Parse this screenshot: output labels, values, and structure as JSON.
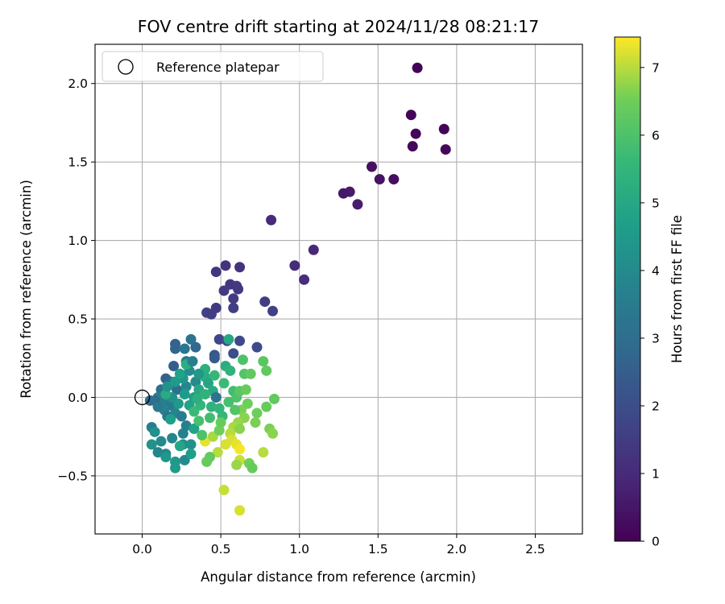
{
  "chart_data": {
    "type": "scatter",
    "title": "FOV centre drift starting at 2024/11/28 08:21:17",
    "xlabel": "Angular distance from reference (arcmin)",
    "ylabel": "Rotation from reference (arcmin)",
    "xlim": [
      -0.3,
      2.8
    ],
    "ylim": [
      -0.87,
      2.25
    ],
    "xticks": [
      0.0,
      0.5,
      1.0,
      1.5,
      2.0,
      2.5
    ],
    "xtick_labels": [
      "0.0",
      "0.5",
      "1.0",
      "1.5",
      "2.0",
      "2.5"
    ],
    "yticks": [
      -0.5,
      0.0,
      0.5,
      1.0,
      1.5,
      2.0
    ],
    "ytick_labels": [
      "−0.5",
      "0.0",
      "0.5",
      "1.0",
      "1.5",
      "2.0"
    ],
    "grid": true,
    "legend": {
      "position": "upper-left",
      "entries": [
        "Reference platepar"
      ]
    },
    "reference_point": {
      "x": 0.0,
      "y": 0.0
    },
    "colorbar": {
      "label": "Hours from first FF file",
      "colormap": "viridis",
      "range": [
        0,
        7.45
      ],
      "ticks": [
        0,
        1,
        2,
        3,
        4,
        5,
        6,
        7
      ],
      "tick_labels": [
        "0",
        "1",
        "2",
        "3",
        "4",
        "5",
        "6",
        "7"
      ]
    },
    "points": [
      {
        "x": 1.75,
        "y": 2.1,
        "h": 0.05
      },
      {
        "x": 1.71,
        "y": 1.8,
        "h": 0.1
      },
      {
        "x": 1.74,
        "y": 1.68,
        "h": 0.12
      },
      {
        "x": 1.72,
        "y": 1.6,
        "h": 0.15
      },
      {
        "x": 1.92,
        "y": 1.71,
        "h": 0.08
      },
      {
        "x": 1.93,
        "y": 1.58,
        "h": 0.18
      },
      {
        "x": 1.46,
        "y": 1.47,
        "h": 0.35
      },
      {
        "x": 1.51,
        "y": 1.39,
        "h": 0.4
      },
      {
        "x": 1.6,
        "y": 1.39,
        "h": 0.3
      },
      {
        "x": 1.28,
        "y": 1.3,
        "h": 0.55
      },
      {
        "x": 1.32,
        "y": 1.31,
        "h": 0.6
      },
      {
        "x": 1.37,
        "y": 1.23,
        "h": 0.7
      },
      {
        "x": 0.82,
        "y": 1.13,
        "h": 1.0
      },
      {
        "x": 1.09,
        "y": 0.94,
        "h": 0.95
      },
      {
        "x": 0.97,
        "y": 0.84,
        "h": 1.05
      },
      {
        "x": 1.03,
        "y": 0.75,
        "h": 1.1
      },
      {
        "x": 0.53,
        "y": 0.84,
        "h": 1.2
      },
      {
        "x": 0.62,
        "y": 0.83,
        "h": 1.25
      },
      {
        "x": 0.47,
        "y": 0.8,
        "h": 1.3
      },
      {
        "x": 0.56,
        "y": 0.72,
        "h": 1.35
      },
      {
        "x": 0.6,
        "y": 0.71,
        "h": 1.4
      },
      {
        "x": 0.61,
        "y": 0.69,
        "h": 1.42
      },
      {
        "x": 0.52,
        "y": 0.68,
        "h": 1.45
      },
      {
        "x": 0.58,
        "y": 0.63,
        "h": 1.5
      },
      {
        "x": 0.58,
        "y": 0.57,
        "h": 1.55
      },
      {
        "x": 0.47,
        "y": 0.57,
        "h": 1.48
      },
      {
        "x": 0.41,
        "y": 0.54,
        "h": 1.6
      },
      {
        "x": 0.44,
        "y": 0.53,
        "h": 1.58
      },
      {
        "x": 0.78,
        "y": 0.61,
        "h": 1.55
      },
      {
        "x": 0.83,
        "y": 0.55,
        "h": 1.65
      },
      {
        "x": 0.49,
        "y": 0.37,
        "h": 1.8
      },
      {
        "x": 0.54,
        "y": 0.36,
        "h": 1.85
      },
      {
        "x": 0.62,
        "y": 0.36,
        "h": 1.9
      },
      {
        "x": 0.73,
        "y": 0.32,
        "h": 1.95
      },
      {
        "x": 0.58,
        "y": 0.28,
        "h": 2.0
      },
      {
        "x": 0.46,
        "y": 0.27,
        "h": 2.3
      },
      {
        "x": 0.46,
        "y": 0.25,
        "h": 2.4
      },
      {
        "x": 0.21,
        "y": 0.34,
        "h": 2.6
      },
      {
        "x": 0.21,
        "y": 0.31,
        "h": 2.7
      },
      {
        "x": 0.34,
        "y": 0.32,
        "h": 2.8
      },
      {
        "x": 0.31,
        "y": 0.37,
        "h": 3.2
      },
      {
        "x": 0.27,
        "y": 0.31,
        "h": 3.3
      },
      {
        "x": 0.28,
        "y": 0.23,
        "h": 3.4
      },
      {
        "x": 0.2,
        "y": 0.2,
        "h": 2.5
      },
      {
        "x": 0.15,
        "y": 0.12,
        "h": 2.6
      },
      {
        "x": 0.18,
        "y": 0.1,
        "h": 2.8
      },
      {
        "x": 0.22,
        "y": 0.05,
        "h": 3.0
      },
      {
        "x": 0.12,
        "y": 0.05,
        "h": 3.1
      },
      {
        "x": 0.1,
        "y": 0.0,
        "h": 3.5
      },
      {
        "x": 0.13,
        "y": -0.02,
        "h": 3.6
      },
      {
        "x": 0.08,
        "y": -0.02,
        "h": 2.9
      },
      {
        "x": 0.05,
        "y": -0.02,
        "h": 3.0
      },
      {
        "x": 0.18,
        "y": -0.05,
        "h": 3.4
      },
      {
        "x": 0.14,
        "y": -0.08,
        "h": 3.7
      },
      {
        "x": 0.16,
        "y": -0.12,
        "h": 3.2
      },
      {
        "x": 0.21,
        "y": -0.1,
        "h": 3.8
      },
      {
        "x": 0.25,
        "y": -0.12,
        "h": 3.5
      },
      {
        "x": 0.28,
        "y": -0.18,
        "h": 3.6
      },
      {
        "x": 0.26,
        "y": -0.23,
        "h": 3.7
      },
      {
        "x": 0.19,
        "y": -0.26,
        "h": 3.9
      },
      {
        "x": 0.06,
        "y": -0.19,
        "h": 3.6
      },
      {
        "x": 0.08,
        "y": -0.22,
        "h": 4.2
      },
      {
        "x": 0.06,
        "y": -0.3,
        "h": 4.3
      },
      {
        "x": 0.1,
        "y": -0.35,
        "h": 3.8
      },
      {
        "x": 0.15,
        "y": -0.36,
        "h": 3.9
      },
      {
        "x": 0.15,
        "y": -0.38,
        "h": 4.4
      },
      {
        "x": 0.21,
        "y": -0.41,
        "h": 4.5
      },
      {
        "x": 0.21,
        "y": -0.45,
        "h": 4.6
      },
      {
        "x": 0.27,
        "y": -0.4,
        "h": 4.0
      },
      {
        "x": 0.26,
        "y": -0.3,
        "h": 4.1
      },
      {
        "x": 0.31,
        "y": -0.3,
        "h": 4.2
      },
      {
        "x": 0.31,
        "y": -0.36,
        "h": 4.7
      },
      {
        "x": 0.33,
        "y": -0.2,
        "h": 4.8
      },
      {
        "x": 0.28,
        "y": 0.07,
        "h": 3.9
      },
      {
        "x": 0.34,
        "y": 0.1,
        "h": 4.0
      },
      {
        "x": 0.26,
        "y": 0.12,
        "h": 4.4
      },
      {
        "x": 0.27,
        "y": 0.02,
        "h": 4.6
      },
      {
        "x": 0.33,
        "y": 0.0,
        "h": 4.7
      },
      {
        "x": 0.3,
        "y": -0.05,
        "h": 4.8
      },
      {
        "x": 0.36,
        "y": 0.05,
        "h": 5.0
      },
      {
        "x": 0.4,
        "y": 0.13,
        "h": 5.2
      },
      {
        "x": 0.4,
        "y": 0.18,
        "h": 5.3
      },
      {
        "x": 0.36,
        "y": 0.15,
        "h": 4.5
      },
      {
        "x": 0.42,
        "y": 0.09,
        "h": 4.9
      },
      {
        "x": 0.45,
        "y": 0.04,
        "h": 5.1
      },
      {
        "x": 0.47,
        "y": 0.0,
        "h": 3.2
      },
      {
        "x": 0.44,
        "y": -0.06,
        "h": 5.4
      },
      {
        "x": 0.49,
        "y": -0.07,
        "h": 5.5
      },
      {
        "x": 0.51,
        "y": -0.12,
        "h": 5.6
      },
      {
        "x": 0.53,
        "y": 0.2,
        "h": 5.2
      },
      {
        "x": 0.55,
        "y": 0.37,
        "h": 5.0
      },
      {
        "x": 0.56,
        "y": 0.17,
        "h": 5.4
      },
      {
        "x": 0.58,
        "y": 0.04,
        "h": 5.8
      },
      {
        "x": 0.6,
        "y": 0.0,
        "h": 6.0
      },
      {
        "x": 0.62,
        "y": 0.04,
        "h": 6.2
      },
      {
        "x": 0.64,
        "y": 0.24,
        "h": 6.0
      },
      {
        "x": 0.65,
        "y": 0.15,
        "h": 6.1
      },
      {
        "x": 0.69,
        "y": 0.15,
        "h": 6.3
      },
      {
        "x": 0.66,
        "y": 0.05,
        "h": 6.4
      },
      {
        "x": 0.67,
        "y": -0.04,
        "h": 6.5
      },
      {
        "x": 0.63,
        "y": -0.08,
        "h": 6.6
      },
      {
        "x": 0.65,
        "y": -0.13,
        "h": 6.7
      },
      {
        "x": 0.61,
        "y": -0.16,
        "h": 6.8
      },
      {
        "x": 0.58,
        "y": -0.19,
        "h": 6.9
      },
      {
        "x": 0.56,
        "y": -0.23,
        "h": 7.0
      },
      {
        "x": 0.57,
        "y": -0.27,
        "h": 7.2
      },
      {
        "x": 0.6,
        "y": -0.3,
        "h": 7.3
      },
      {
        "x": 0.62,
        "y": -0.33,
        "h": 7.4
      },
      {
        "x": 0.62,
        "y": -0.4,
        "h": 7.1
      },
      {
        "x": 0.6,
        "y": -0.43,
        "h": 6.8
      },
      {
        "x": 0.68,
        "y": -0.42,
        "h": 6.5
      },
      {
        "x": 0.7,
        "y": -0.45,
        "h": 6.4
      },
      {
        "x": 0.73,
        "y": -0.1,
        "h": 6.5
      },
      {
        "x": 0.72,
        "y": -0.16,
        "h": 6.6
      },
      {
        "x": 0.77,
        "y": 0.23,
        "h": 6.2
      },
      {
        "x": 0.79,
        "y": 0.17,
        "h": 6.3
      },
      {
        "x": 0.79,
        "y": -0.06,
        "h": 6.4
      },
      {
        "x": 0.81,
        "y": -0.2,
        "h": 6.6
      },
      {
        "x": 0.83,
        "y": -0.23,
        "h": 6.7
      },
      {
        "x": 0.84,
        "y": -0.01,
        "h": 6.3
      },
      {
        "x": 0.77,
        "y": -0.35,
        "h": 7.0
      },
      {
        "x": 0.52,
        "y": -0.59,
        "h": 7.1
      },
      {
        "x": 0.62,
        "y": -0.72,
        "h": 7.2
      },
      {
        "x": 0.4,
        "y": -0.28,
        "h": 7.3
      },
      {
        "x": 0.45,
        "y": -0.25,
        "h": 6.9
      },
      {
        "x": 0.48,
        "y": -0.35,
        "h": 7.0
      },
      {
        "x": 0.43,
        "y": -0.38,
        "h": 6.3
      },
      {
        "x": 0.41,
        "y": -0.41,
        "h": 6.4
      },
      {
        "x": 0.49,
        "y": -0.21,
        "h": 6.5
      },
      {
        "x": 0.36,
        "y": -0.15,
        "h": 5.9
      },
      {
        "x": 0.38,
        "y": -0.24,
        "h": 6.0
      },
      {
        "x": 0.33,
        "y": -0.09,
        "h": 5.7
      },
      {
        "x": 0.23,
        "y": -0.04,
        "h": 4.5
      },
      {
        "x": 0.19,
        "y": 0.0,
        "h": 4.2
      },
      {
        "x": 0.15,
        "y": 0.02,
        "h": 5.1
      },
      {
        "x": 0.16,
        "y": 0.07,
        "h": 4.3
      },
      {
        "x": 0.21,
        "y": 0.1,
        "h": 4.6
      },
      {
        "x": 0.24,
        "y": 0.15,
        "h": 4.8
      },
      {
        "x": 0.3,
        "y": 0.17,
        "h": 4.1
      },
      {
        "x": 0.28,
        "y": 0.21,
        "h": 5.2
      },
      {
        "x": 0.46,
        "y": 0.14,
        "h": 5.6
      },
      {
        "x": 0.52,
        "y": 0.09,
        "h": 5.7
      },
      {
        "x": 0.55,
        "y": -0.03,
        "h": 5.9
      },
      {
        "x": 0.59,
        "y": -0.08,
        "h": 6.1
      },
      {
        "x": 0.62,
        "y": -0.2,
        "h": 6.7
      },
      {
        "x": 0.53,
        "y": -0.3,
        "h": 7.2
      },
      {
        "x": 0.5,
        "y": -0.16,
        "h": 6.4
      },
      {
        "x": 0.43,
        "y": -0.13,
        "h": 5.8
      },
      {
        "x": 0.37,
        "y": -0.05,
        "h": 5.5
      },
      {
        "x": 0.35,
        "y": -0.01,
        "h": 5.3
      },
      {
        "x": 0.4,
        "y": 0.02,
        "h": 5.4
      },
      {
        "x": 0.12,
        "y": -0.28,
        "h": 4.0
      },
      {
        "x": 0.24,
        "y": -0.31,
        "h": 4.9
      },
      {
        "x": 0.18,
        "y": -0.14,
        "h": 4.7
      },
      {
        "x": 0.1,
        "y": -0.06,
        "h": 3.4
      },
      {
        "x": 0.32,
        "y": 0.23,
        "h": 3.6
      }
    ]
  }
}
